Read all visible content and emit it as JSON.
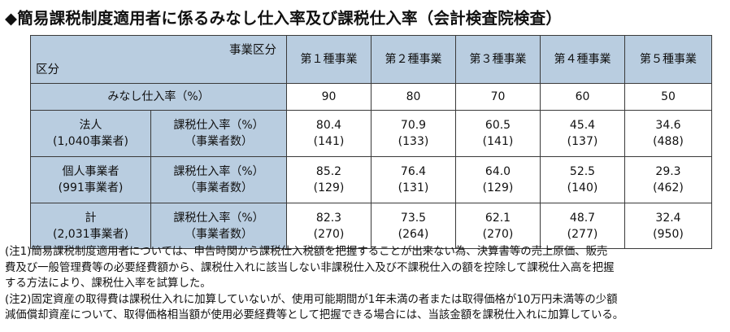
{
  "title": "◆簡易課税制度適用者に係るみなし仕入率及び課税仕入率（会計検査院検査）",
  "table": {
    "header_top": "事業区分",
    "header_bottom": "区分",
    "columns": [
      "第１種事業",
      "第２種事業",
      "第３種事業",
      "第４種事業",
      "第５種事業"
    ],
    "deemed_row": {
      "label": "みなし仕入率（%）",
      "values": [
        "90",
        "80",
        "70",
        "60",
        "50"
      ]
    },
    "rows": [
      {
        "group_line1": "法人",
        "group_line2": "(1,040事業者)",
        "measure_line1": "課税仕入率（%）",
        "measure_line2": "（事業者数）",
        "cells": [
          {
            "rate": "80.4",
            "count": "(141)"
          },
          {
            "rate": "70.9",
            "count": "(133)"
          },
          {
            "rate": "60.5",
            "count": "(141)"
          },
          {
            "rate": "45.4",
            "count": "(137)"
          },
          {
            "rate": "34.6",
            "count": "(488)"
          }
        ]
      },
      {
        "group_line1": "個人事業者",
        "group_line2": "(991事業者)",
        "measure_line1": "課税仕入率（%）",
        "measure_line2": "（事業者数）",
        "cells": [
          {
            "rate": "85.2",
            "count": "(129)"
          },
          {
            "rate": "76.4",
            "count": "(131)"
          },
          {
            "rate": "64.0",
            "count": "(129)"
          },
          {
            "rate": "52.5",
            "count": "(140)"
          },
          {
            "rate": "29.3",
            "count": "(462)"
          }
        ]
      },
      {
        "group_line1": "計",
        "group_line2": "(2,031事業者)",
        "measure_line1": "課税仕入率（%）",
        "measure_line2": "（事業者数）",
        "cells": [
          {
            "rate": "82.3",
            "count": "(270)"
          },
          {
            "rate": "73.5",
            "count": "(264)"
          },
          {
            "rate": "62.1",
            "count": "(270)"
          },
          {
            "rate": "48.7",
            "count": "(277)"
          },
          {
            "rate": "32.4",
            "count": "(950)"
          }
        ]
      }
    ]
  },
  "notes": [
    "(注1)簡易課税制度適用者については、申告時関から課税仕入税額を把握することが出来ない為、決算書等の売上原価、販売",
    "費及び一般管理費等の必要経費額から、課税仕入れに該当しない非課税仕入及び不課税仕入の額を控除して課税仕入高を把握",
    "する方法により、課税仕入率を試算した。",
    "(注2)固定資産の取得費は課税仕入れに加算していないが、使用可能期間が1年未満の者または取得価格が10万円未満等の少額",
    "減価償却資産について、取得価格相当額が使用必要経費等として把握できる場合には、当該金額を課税仕入れに加算している。"
  ]
}
